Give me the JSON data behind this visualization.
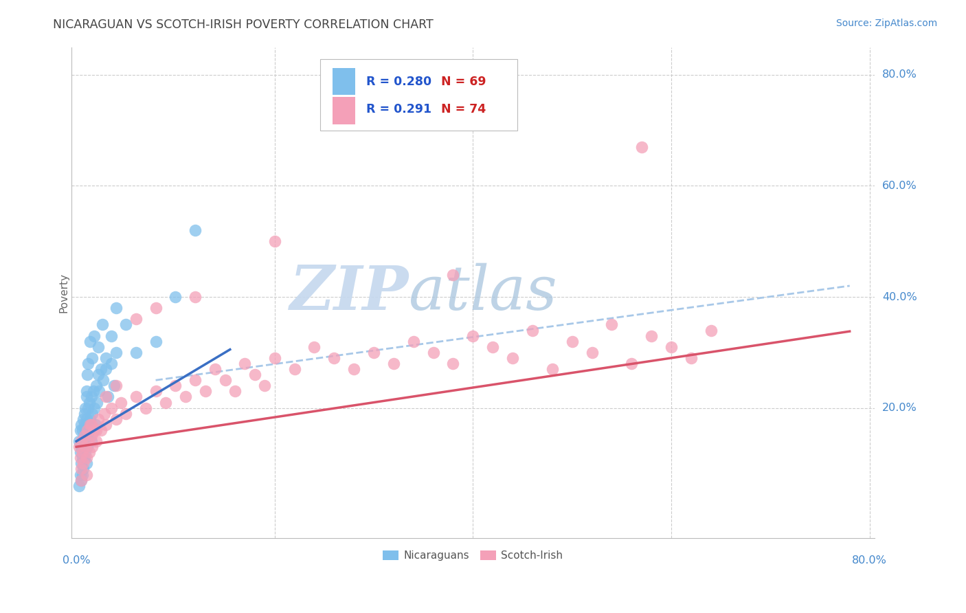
{
  "title": "NICARAGUAN VS SCOTCH-IRISH POVERTY CORRELATION CHART",
  "source": "Source: ZipAtlas.com",
  "ylabel": "Poverty",
  "blue_R": "0.280",
  "blue_N": "69",
  "pink_R": "0.291",
  "pink_N": "74",
  "blue_color": "#7fbfec",
  "pink_color": "#f4a0b8",
  "blue_line_color": "#3a6fc4",
  "pink_line_color": "#d9536a",
  "dashed_line_color": "#a8c8e8",
  "title_color": "#555555",
  "axis_label_color": "#4488cc",
  "watermark_color_zip": "#c8ddf0",
  "watermark_color_atlas": "#b8cce0",
  "background": "#ffffff",
  "legend_R_color": "#2255cc",
  "legend_N_color": "#cc2222",
  "grid_color": "#cccccc",
  "blue_scatter_x": [
    0.003,
    0.004,
    0.004,
    0.005,
    0.005,
    0.005,
    0.006,
    0.006,
    0.006,
    0.007,
    0.007,
    0.007,
    0.008,
    0.008,
    0.008,
    0.009,
    0.009,
    0.01,
    0.01,
    0.01,
    0.01,
    0.011,
    0.011,
    0.012,
    0.012,
    0.013,
    0.013,
    0.014,
    0.015,
    0.015,
    0.016,
    0.017,
    0.018,
    0.019,
    0.02,
    0.021,
    0.022,
    0.023,
    0.025,
    0.027,
    0.03,
    0.032,
    0.035,
    0.038,
    0.04,
    0.003,
    0.004,
    0.005,
    0.006,
    0.006,
    0.007,
    0.008,
    0.009,
    0.01,
    0.011,
    0.012,
    0.014,
    0.016,
    0.018,
    0.022,
    0.026,
    0.03,
    0.035,
    0.04,
    0.05,
    0.06,
    0.08,
    0.1,
    0.12
  ],
  "blue_scatter_y": [
    0.14,
    0.12,
    0.16,
    0.1,
    0.13,
    0.17,
    0.08,
    0.12,
    0.16,
    0.09,
    0.14,
    0.18,
    0.11,
    0.15,
    0.19,
    0.12,
    0.16,
    0.1,
    0.14,
    0.18,
    0.22,
    0.13,
    0.17,
    0.15,
    0.2,
    0.16,
    0.21,
    0.18,
    0.14,
    0.22,
    0.19,
    0.23,
    0.2,
    0.17,
    0.24,
    0.21,
    0.26,
    0.23,
    0.27,
    0.25,
    0.29,
    0.22,
    0.28,
    0.24,
    0.3,
    0.06,
    0.08,
    0.07,
    0.11,
    0.14,
    0.13,
    0.17,
    0.2,
    0.23,
    0.26,
    0.28,
    0.32,
    0.29,
    0.33,
    0.31,
    0.35,
    0.27,
    0.33,
    0.38,
    0.35,
    0.3,
    0.32,
    0.4,
    0.52
  ],
  "pink_scatter_x": [
    0.003,
    0.004,
    0.005,
    0.005,
    0.006,
    0.007,
    0.008,
    0.009,
    0.01,
    0.011,
    0.012,
    0.013,
    0.014,
    0.015,
    0.016,
    0.018,
    0.02,
    0.022,
    0.025,
    0.028,
    0.03,
    0.035,
    0.04,
    0.045,
    0.05,
    0.06,
    0.07,
    0.08,
    0.09,
    0.1,
    0.11,
    0.12,
    0.13,
    0.14,
    0.15,
    0.16,
    0.17,
    0.18,
    0.19,
    0.2,
    0.22,
    0.24,
    0.26,
    0.28,
    0.3,
    0.32,
    0.34,
    0.36,
    0.38,
    0.4,
    0.42,
    0.44,
    0.46,
    0.48,
    0.5,
    0.52,
    0.54,
    0.56,
    0.58,
    0.6,
    0.62,
    0.64,
    0.005,
    0.01,
    0.015,
    0.02,
    0.03,
    0.04,
    0.06,
    0.08,
    0.12,
    0.2,
    0.38,
    0.57
  ],
  "pink_scatter_y": [
    0.13,
    0.11,
    0.09,
    0.14,
    0.12,
    0.1,
    0.15,
    0.13,
    0.11,
    0.16,
    0.14,
    0.12,
    0.17,
    0.15,
    0.13,
    0.16,
    0.14,
    0.18,
    0.16,
    0.19,
    0.17,
    0.2,
    0.18,
    0.21,
    0.19,
    0.22,
    0.2,
    0.23,
    0.21,
    0.24,
    0.22,
    0.25,
    0.23,
    0.27,
    0.25,
    0.23,
    0.28,
    0.26,
    0.24,
    0.29,
    0.27,
    0.31,
    0.29,
    0.27,
    0.3,
    0.28,
    0.32,
    0.3,
    0.28,
    0.33,
    0.31,
    0.29,
    0.34,
    0.27,
    0.32,
    0.3,
    0.35,
    0.28,
    0.33,
    0.31,
    0.29,
    0.34,
    0.07,
    0.08,
    0.17,
    0.16,
    0.22,
    0.24,
    0.36,
    0.38,
    0.4,
    0.5,
    0.44,
    0.67
  ]
}
